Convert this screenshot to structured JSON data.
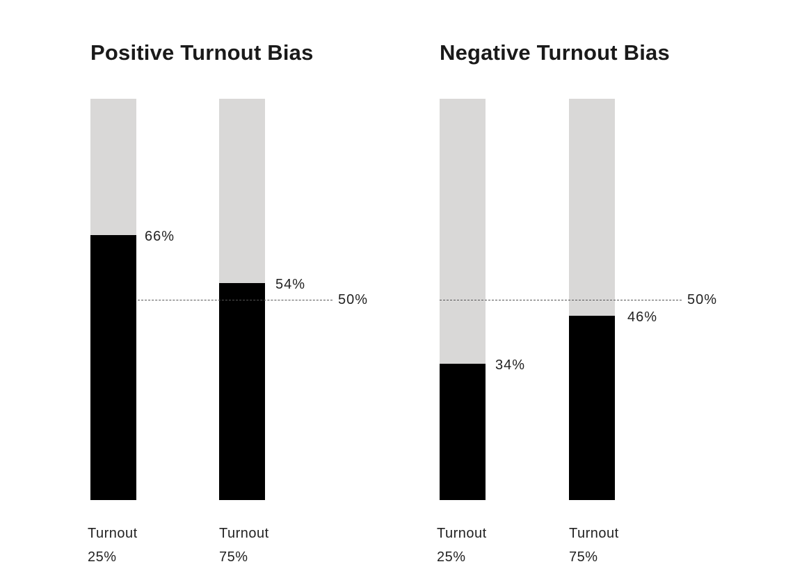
{
  "chart_data": [
    {
      "type": "bar",
      "title": "Positive Turnout Bias",
      "categories": [
        [
          "Turnout",
          "25%"
        ],
        [
          "Turnout",
          "75%"
        ]
      ],
      "values": [
        66,
        54
      ],
      "value_labels": [
        "66%",
        "54%"
      ],
      "reference_line": {
        "value": 50,
        "label": "50%"
      },
      "ylim": [
        0,
        100
      ],
      "colors": {
        "fill": "#000000",
        "track": "#d9d8d7"
      }
    },
    {
      "type": "bar",
      "title": "Negative Turnout Bias",
      "categories": [
        [
          "Turnout",
          "25%"
        ],
        [
          "Turnout",
          "75%"
        ]
      ],
      "values": [
        34,
        46
      ],
      "value_labels": [
        "34%",
        "46%"
      ],
      "reference_line": {
        "value": 50,
        "label": "50%"
      },
      "ylim": [
        0,
        100
      ],
      "colors": {
        "fill": "#000000",
        "track": "#d9d8d7"
      }
    }
  ]
}
